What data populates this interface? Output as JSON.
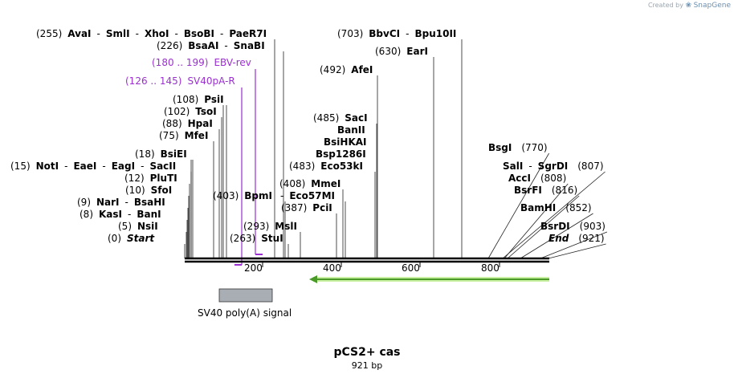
{
  "credit": {
    "prefix": "Created by",
    "brand": "SnapGene"
  },
  "plasmid": {
    "name": "pCS2+ cas",
    "length_label": "921 bp"
  },
  "axis_ticks": [
    "200",
    "400",
    "600",
    "800"
  ],
  "feature": {
    "label": "SV40 poly(A) signal"
  },
  "colors": {
    "primer": "#9b30d0",
    "feature_box": "#a8aeb4",
    "arrow": "#4a9a28",
    "arrow_glow": "#c8f0a0",
    "backbone": "#000000"
  },
  "rows": [
    {
      "segs": [
        {
          "pos": "(255)",
          "name": "AvaI"
        },
        {
          "sep": "-",
          "name": "SmlI"
        },
        {
          "sep": "-",
          "name": "XhoI"
        },
        {
          "sep": "-",
          "name": "BsoBI"
        },
        {
          "sep": "-",
          "name": "PaeR7I"
        }
      ]
    },
    {
      "segs": [
        {
          "pos": "(226)",
          "name": "BsaAI"
        },
        {
          "sep": "-",
          "name": "SnaBI"
        }
      ]
    },
    {
      "segs": [
        {
          "pos": "(180 .. 199)",
          "name": "EBV-rev",
          "primer": true
        }
      ]
    },
    {
      "segs": [
        {
          "pos": "(126 .. 145)",
          "name": "SV40pA-R",
          "primer": true
        }
      ]
    },
    {
      "segs": [
        {
          "pos": "(108)",
          "name": "PsiI"
        }
      ]
    },
    {
      "segs": [
        {
          "pos": "(102)",
          "name": "TsoI"
        }
      ]
    },
    {
      "segs": [
        {
          "pos": "(88)",
          "name": "HpaI"
        }
      ]
    },
    {
      "segs": [
        {
          "pos": "(75)",
          "name": "MfeI"
        }
      ]
    },
    {
      "segs": [
        {
          "pos": "(18)",
          "name": "BsiEI"
        }
      ]
    },
    {
      "segs": [
        {
          "pos": "(15)",
          "name": "NotI"
        },
        {
          "sep": "-",
          "name": "EaeI"
        },
        {
          "sep": "-",
          "name": "EagI"
        },
        {
          "sep": "-",
          "name": "SacII"
        }
      ]
    },
    {
      "segs": [
        {
          "pos": "(12)",
          "name": "PluTI"
        }
      ]
    },
    {
      "segs": [
        {
          "pos": "(10)",
          "name": "SfoI"
        }
      ]
    },
    {
      "segs": [
        {
          "pos": "(403)",
          "name": "BpmI"
        }
      ]
    },
    {
      "segs": [
        {
          "pos": "(9)",
          "name": "NarI"
        },
        {
          "sep": "-",
          "name": "BsaHI"
        }
      ]
    },
    {
      "segs": [
        {
          "pos": "(8)",
          "name": "KasI"
        },
        {
          "sep": "-",
          "name": "BanI"
        }
      ]
    },
    {
      "segs": [
        {
          "pos": "(5)",
          "name": "NsiI"
        }
      ]
    },
    {
      "segs": [
        {
          "pos": "(293)",
          "name": "MslI"
        }
      ]
    },
    {
      "segs": [
        {
          "pos": "(0)",
          "name": "Start",
          "italic": true
        }
      ]
    },
    {
      "segs": [
        {
          "pos": "(263)",
          "name": "StuI"
        }
      ]
    },
    {
      "segs": [
        {
          "pos": "(408)",
          "name": "MmeI"
        }
      ]
    },
    {
      "segs": [
        {
          "sep": "-",
          "name": "Eco57MI"
        }
      ]
    },
    {
      "segs": [
        {
          "pos": "(387)",
          "name": "PciI"
        }
      ]
    },
    {
      "segs": [
        {
          "pos": "(703)",
          "name": "BbvCI"
        },
        {
          "sep": "-",
          "name": "Bpu10II"
        }
      ]
    },
    {
      "segs": [
        {
          "pos": "(630)",
          "name": "EarI"
        }
      ]
    },
    {
      "segs": [
        {
          "pos": "(492)",
          "name": "AfeI"
        }
      ]
    },
    {
      "segs": [
        {
          "pos": "(485)",
          "name": "SacI"
        }
      ]
    },
    {
      "segs": [
        {
          "name": "BanII"
        }
      ]
    },
    {
      "segs": [
        {
          "name": "BsiHKAI"
        }
      ]
    },
    {
      "segs": [
        {
          "name": "Bsp1286I"
        }
      ]
    },
    {
      "segs": [
        {
          "pos": "(483)",
          "name": "Eco53kI"
        }
      ]
    },
    {
      "segs": [
        {
          "name": "BsgI"
        },
        {
          "pos": "(770)"
        }
      ]
    },
    {
      "segs": [
        {
          "name": "SalI"
        },
        {
          "sep": "-",
          "name": "SgrDI"
        },
        {
          "pos": "(807)"
        }
      ]
    },
    {
      "segs": [
        {
          "name": "AccI"
        },
        {
          "pos": "(808)"
        }
      ]
    },
    {
      "segs": [
        {
          "name": "BsrFI"
        },
        {
          "pos": "(816)"
        }
      ]
    },
    {
      "segs": [
        {
          "name": "BamHI"
        },
        {
          "pos": "(852)"
        }
      ]
    },
    {
      "segs": [
        {
          "name": "BsrDI"
        },
        {
          "pos": "(903)"
        }
      ]
    },
    {
      "segs": [
        {
          "name": "End",
          "italic": true
        },
        {
          "pos": "(921)"
        }
      ]
    }
  ]
}
